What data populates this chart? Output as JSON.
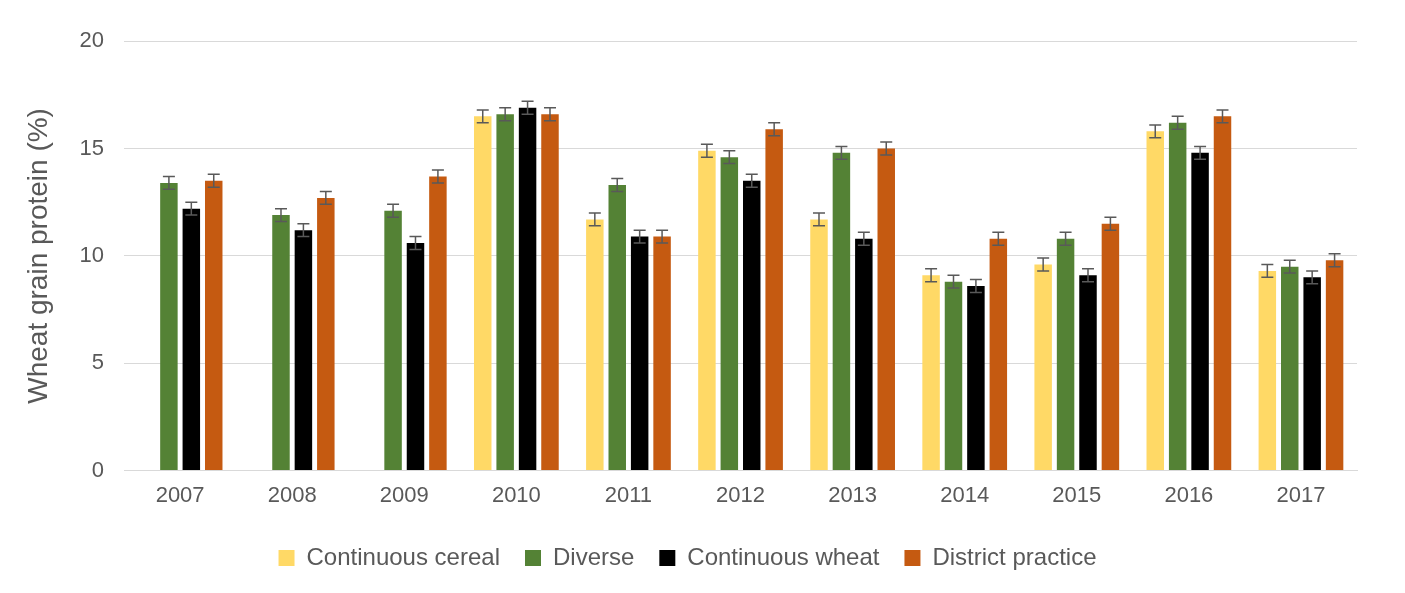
{
  "chart_data": {
    "type": "bar",
    "ylabel": "Wheat grain protein (%)",
    "categories": [
      "2007",
      "2008",
      "2009",
      "2010",
      "2011",
      "2012",
      "2013",
      "2014",
      "2015",
      "2016",
      "2017"
    ],
    "series": [
      {
        "name": "Continuous cereal",
        "color": "#ffd966",
        "values": [
          null,
          null,
          null,
          16.5,
          11.7,
          14.9,
          11.7,
          9.1,
          9.6,
          15.8,
          9.3
        ],
        "errors": [
          null,
          null,
          null,
          0.3,
          0.3,
          0.3,
          0.3,
          0.3,
          0.3,
          0.3,
          0.3
        ]
      },
      {
        "name": "Diverse",
        "color": "#548235",
        "values": [
          13.4,
          11.9,
          12.1,
          16.6,
          13.3,
          14.6,
          14.8,
          8.8,
          10.8,
          16.2,
          9.5
        ],
        "errors": [
          0.3,
          0.3,
          0.3,
          0.3,
          0.3,
          0.3,
          0.3,
          0.3,
          0.3,
          0.3,
          0.3
        ]
      },
      {
        "name": "Continuous wheat",
        "color": "#000000",
        "values": [
          12.2,
          11.2,
          10.6,
          16.9,
          10.9,
          13.5,
          10.8,
          8.6,
          9.1,
          14.8,
          9.0
        ],
        "errors": [
          0.3,
          0.3,
          0.3,
          0.3,
          0.3,
          0.3,
          0.3,
          0.3,
          0.3,
          0.3,
          0.3
        ]
      },
      {
        "name": "District practice",
        "color": "#c55a11",
        "values": [
          13.5,
          12.7,
          13.7,
          16.6,
          10.9,
          15.9,
          15.0,
          10.8,
          11.5,
          16.5,
          9.8
        ],
        "errors": [
          0.3,
          0.3,
          0.3,
          0.3,
          0.3,
          0.3,
          0.3,
          0.3,
          0.3,
          0.3,
          0.3
        ]
      }
    ],
    "ylim": [
      0,
      20
    ],
    "yticks": [
      0,
      5,
      10,
      15,
      20
    ],
    "grid": "y",
    "legend": "bottom"
  }
}
